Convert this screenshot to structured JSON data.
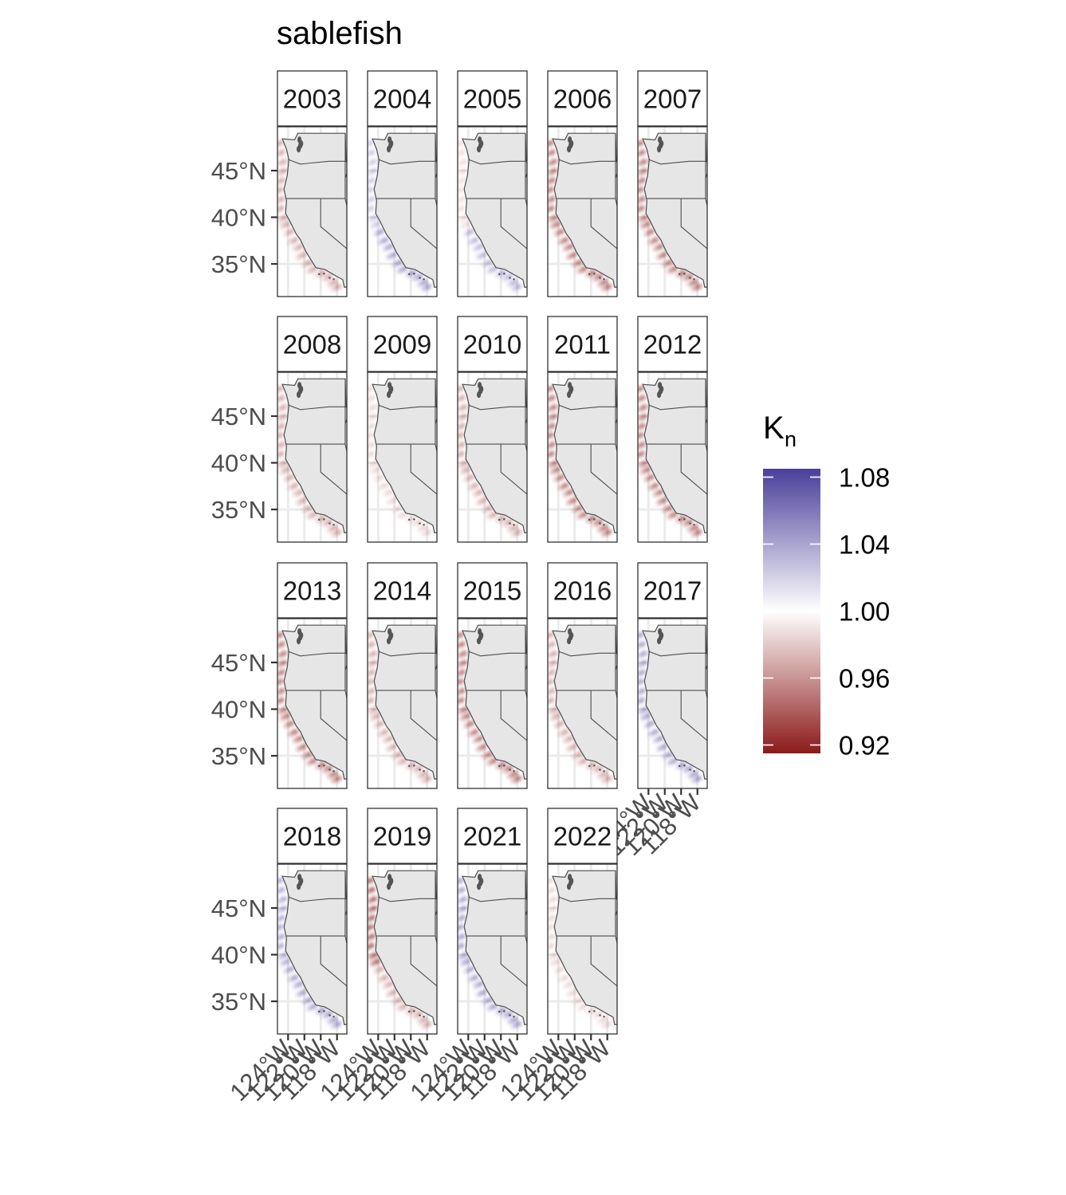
{
  "chart_data": {
    "type": "heatmap",
    "title": "sablefish",
    "xlabel": "",
    "ylabel": "",
    "facet_variable": "year",
    "panels": [
      {
        "year": "2003",
        "tone": "slight-red-coast"
      },
      {
        "year": "2004",
        "tone": "slight-blue-south"
      },
      {
        "year": "2005",
        "tone": "near-neutral-blue-south"
      },
      {
        "year": "2006",
        "tone": "red-coast"
      },
      {
        "year": "2007",
        "tone": "red-coast"
      },
      {
        "year": "2008",
        "tone": "slight-red-coast"
      },
      {
        "year": "2009",
        "tone": "near-neutral"
      },
      {
        "year": "2010",
        "tone": "slight-red-coast"
      },
      {
        "year": "2011",
        "tone": "red-coast"
      },
      {
        "year": "2012",
        "tone": "red-coast"
      },
      {
        "year": "2013",
        "tone": "red-coast"
      },
      {
        "year": "2014",
        "tone": "slight-red-coast"
      },
      {
        "year": "2015",
        "tone": "red-coast"
      },
      {
        "year": "2016",
        "tone": "slight-red-coast"
      },
      {
        "year": "2017",
        "tone": "blue-coast"
      },
      {
        "year": "2018",
        "tone": "blue-north-south"
      },
      {
        "year": "2019",
        "tone": "red-north"
      },
      {
        "year": "2021",
        "tone": "blue-coast"
      },
      {
        "year": "2022",
        "tone": "near-neutral"
      }
    ],
    "y_axis": {
      "ticks": [
        {
          "value": 45,
          "label": "45°N"
        },
        {
          "value": 40,
          "label": "40°N"
        },
        {
          "value": 35,
          "label": "35°N"
        }
      ],
      "range": [
        31.5,
        49.7
      ]
    },
    "x_axis": {
      "ticks": [
        {
          "value": -124,
          "label": "124°W"
        },
        {
          "value": -122,
          "label": "122°W"
        },
        {
          "value": -120,
          "label": "120°W"
        },
        {
          "value": -118,
          "label": "118°W"
        }
      ],
      "range": [
        -125.3,
        -116.8
      ],
      "label_rotation": -45
    },
    "legend": {
      "title_main": "K",
      "title_sub": "n",
      "placement": "right",
      "min": 0.915,
      "max": 1.085,
      "ticks": [
        {
          "value": 1.08,
          "label": "1.08"
        },
        {
          "value": 1.04,
          "label": "1.04"
        },
        {
          "value": 1.0,
          "label": "1.00"
        },
        {
          "value": 0.96,
          "label": "0.96"
        },
        {
          "value": 0.92,
          "label": "0.92"
        }
      ],
      "colors": {
        "low": "#8b1a1a",
        "mid": "#ffffff",
        "high": "#4a3f9a"
      }
    },
    "colors": {
      "land": "#e6e6e6",
      "border": "#4d4d4d",
      "lake": "#555555",
      "grid": "#ebebeb",
      "panel_frame": "#333333",
      "axis_text": "#4d4d4d"
    }
  }
}
